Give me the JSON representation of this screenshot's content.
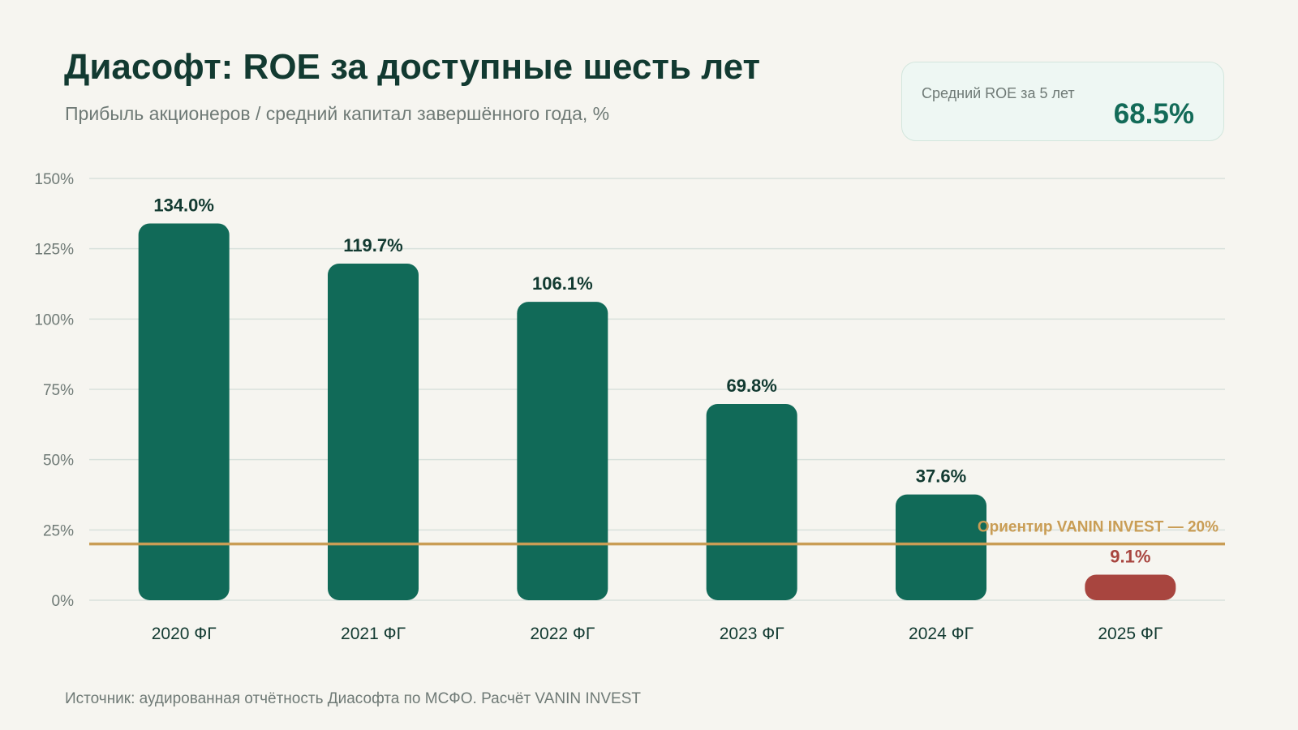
{
  "header": {
    "title": "Диасофт: ROE за доступные шесть лет",
    "subtitle": "Прибыль акционеров / средний капитал завершённого года, %"
  },
  "kpi": {
    "label": "Средний ROE за 5 лет",
    "value": "68.5%"
  },
  "footer": {
    "source": "Источник: аудированная отчётность Диасофта по МСФО. Расчёт VANIN INVEST"
  },
  "colors": {
    "bar": "#116a58",
    "bar_below_benchmark": "#a8453f",
    "benchmark": "#c99d55",
    "grid": "#d8e1dc",
    "label": "#123a31",
    "axis_text": "#6f7a76"
  },
  "chart_data": {
    "type": "bar",
    "categories": [
      "2020 ФГ",
      "2021 ФГ",
      "2022 ФГ",
      "2023 ФГ",
      "2024 ФГ",
      "2025 ФГ"
    ],
    "values": [
      134.0,
      119.7,
      106.1,
      69.8,
      37.6,
      9.1
    ],
    "value_labels": [
      "134.0%",
      "119.7%",
      "106.1%",
      "69.8%",
      "37.6%",
      "9.1%"
    ],
    "ylim": [
      0,
      150
    ],
    "yticks": [
      0,
      25,
      50,
      75,
      100,
      125,
      150
    ],
    "ytick_labels": [
      "0%",
      "25%",
      "50%",
      "75%",
      "100%",
      "125%",
      "150%"
    ],
    "benchmark": {
      "value": 20,
      "label": "Ориентир VANIN INVEST — 20%"
    },
    "grid": true
  }
}
